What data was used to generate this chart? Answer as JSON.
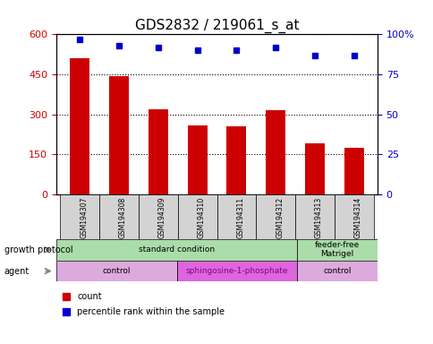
{
  "title": "GDS2832 / 219061_s_at",
  "samples": [
    "GSM194307",
    "GSM194308",
    "GSM194309",
    "GSM194310",
    "GSM194311",
    "GSM194312",
    "GSM194313",
    "GSM194314"
  ],
  "counts": [
    510,
    445,
    320,
    257,
    255,
    315,
    190,
    175
  ],
  "percentile_ranks": [
    97,
    93,
    92,
    90,
    90,
    92,
    87,
    87
  ],
  "ylim_left": [
    0,
    600
  ],
  "ylim_right": [
    0,
    100
  ],
  "yticks_left": [
    0,
    150,
    300,
    450,
    600
  ],
  "yticks_right": [
    0,
    25,
    50,
    75,
    100
  ],
  "bar_color": "#cc0000",
  "dot_color": "#0000cc",
  "growth_protocol_labels": [
    {
      "text": "standard condition",
      "start": 0,
      "end": 6,
      "color": "#aaddaa"
    },
    {
      "text": "feeder-free\nMatrigel",
      "start": 6,
      "end": 8,
      "color": "#aaddaa"
    }
  ],
  "agent_labels": [
    {
      "text": "control",
      "start": 0,
      "end": 3,
      "color": "#ddaadd"
    },
    {
      "text": "sphingosine-1-phosphate",
      "start": 3,
      "end": 6,
      "color": "#dd66dd"
    },
    {
      "text": "control",
      "start": 6,
      "end": 8,
      "color": "#ddaadd"
    }
  ],
  "legend_items": [
    {
      "label": "count",
      "color": "#cc0000"
    },
    {
      "label": "percentile rank within the sample",
      "color": "#0000cc"
    }
  ],
  "title_fontsize": 11,
  "axis_label_color_left": "#cc0000",
  "axis_label_color_right": "#0000cc"
}
